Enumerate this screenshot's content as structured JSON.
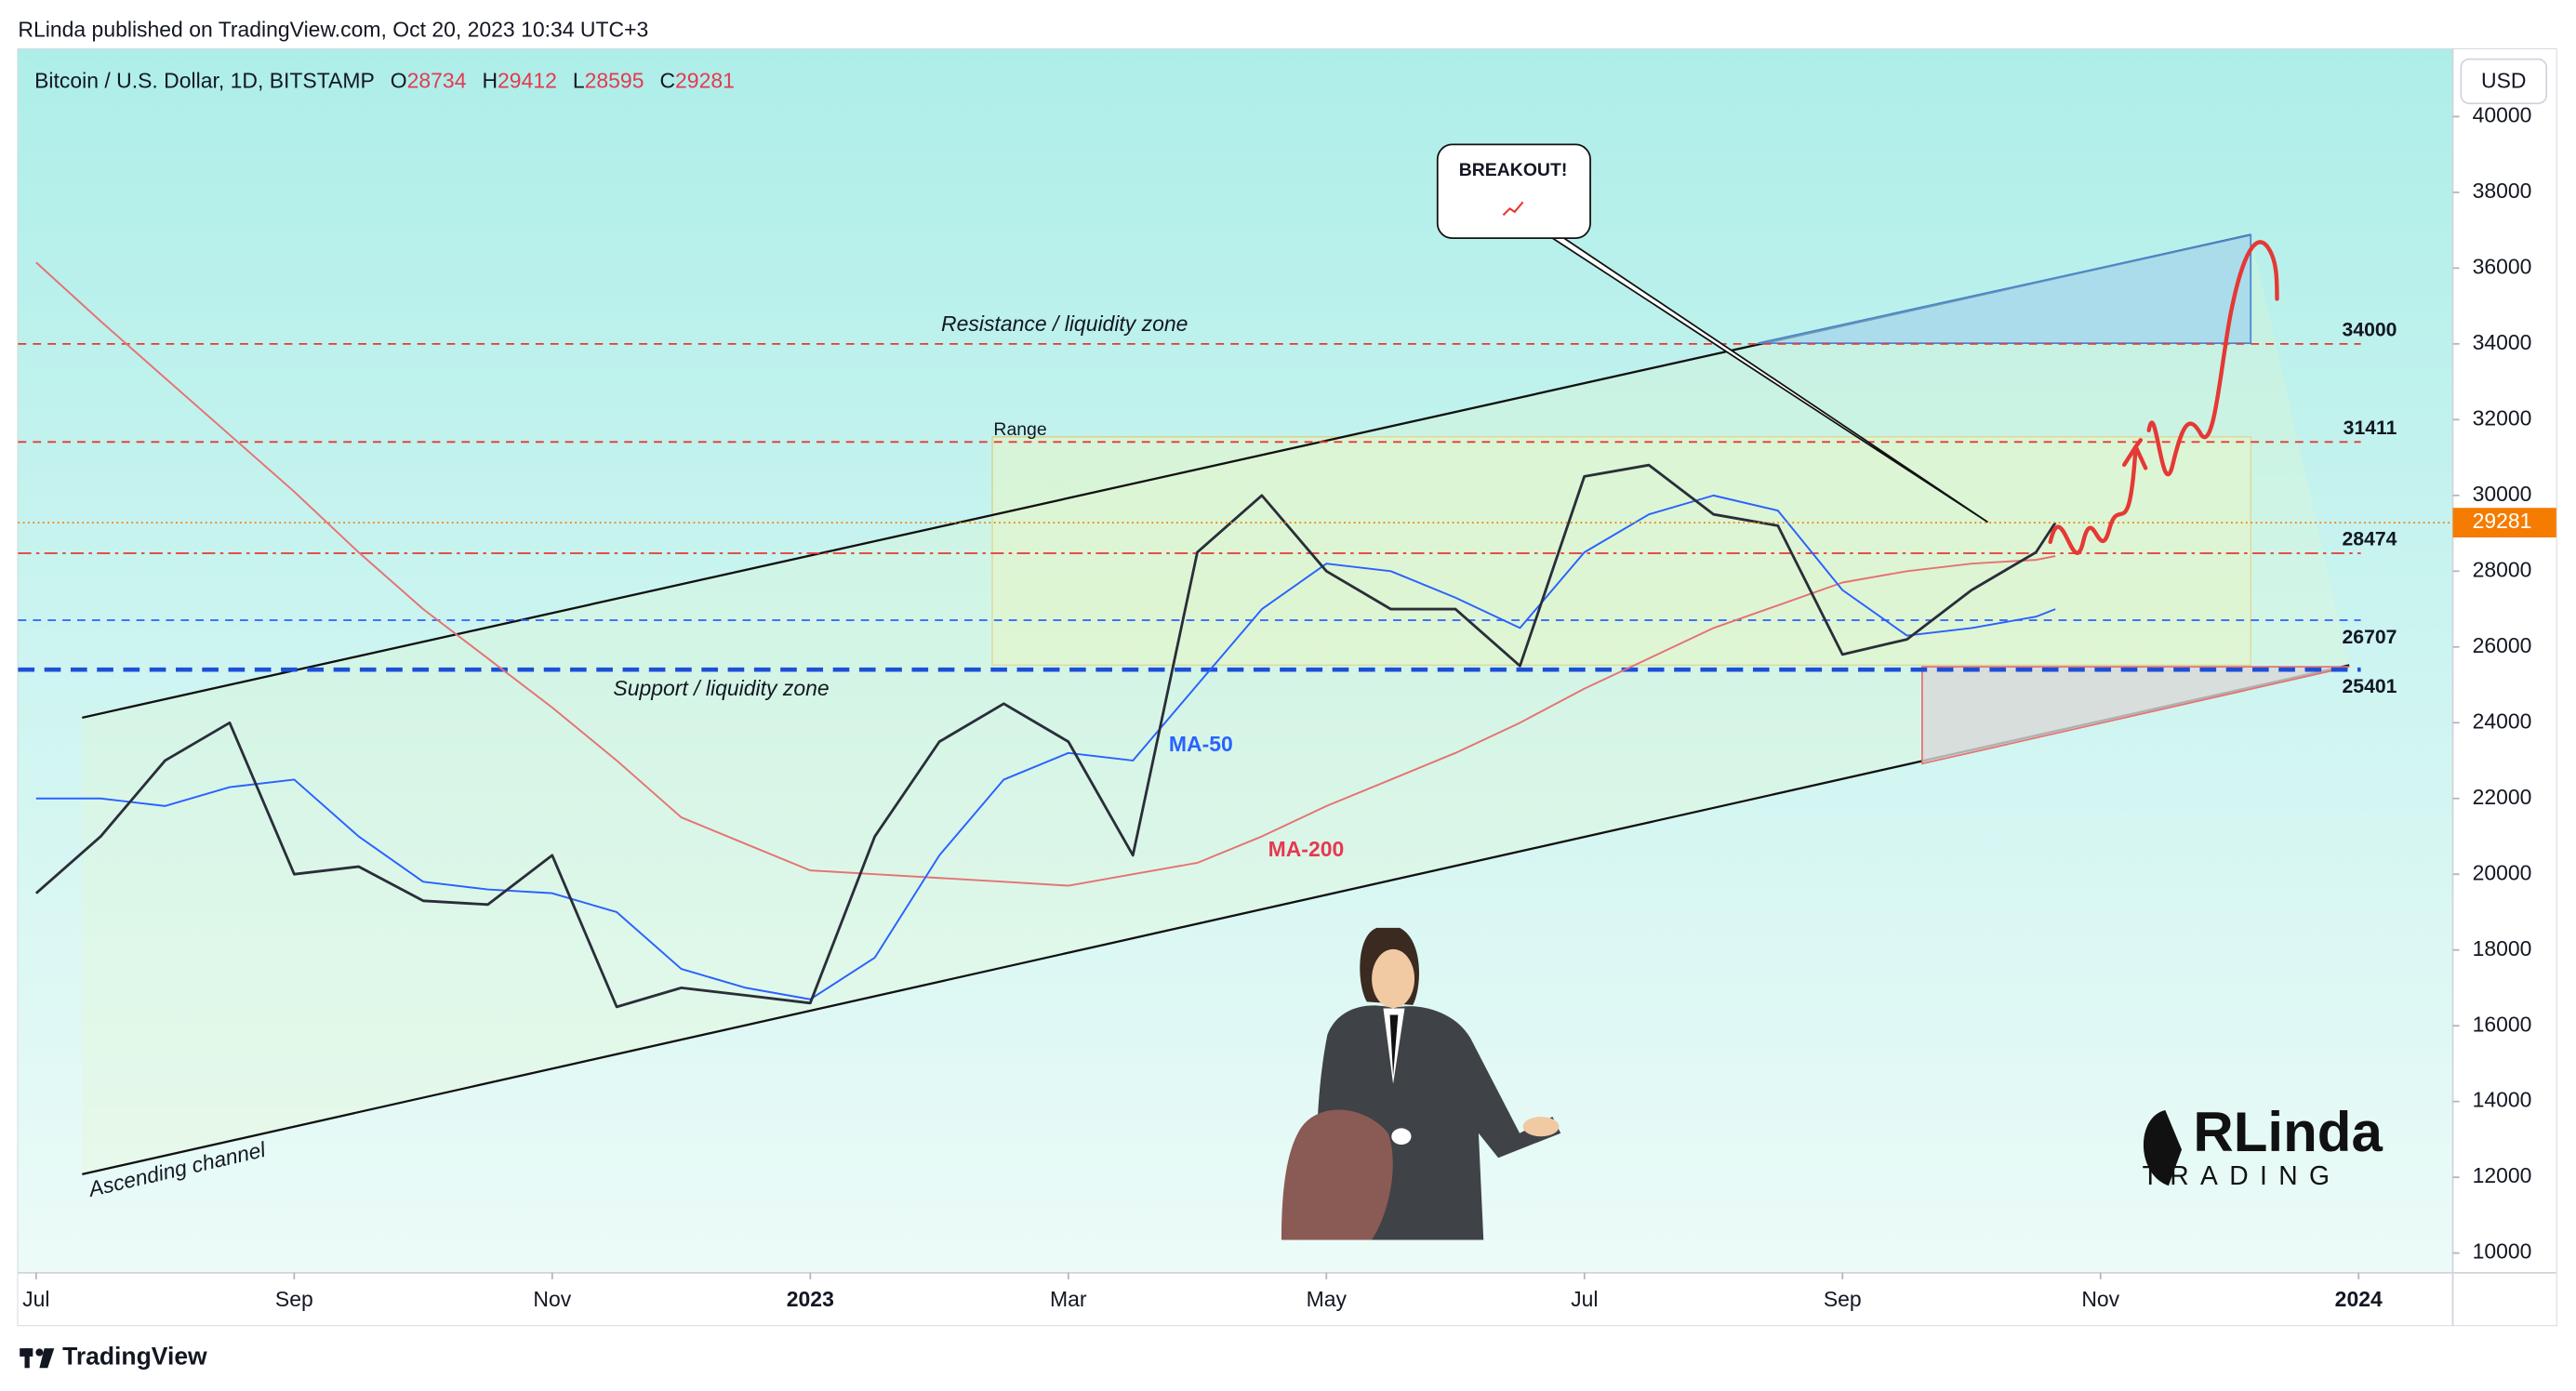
{
  "header": {
    "text": "RLinda published on TradingView.com, Oct 20, 2023 10:34 UTC+3"
  },
  "currency": "USD",
  "footer": {
    "brand": "TradingView"
  },
  "logo": {
    "name": "RLinda",
    "subtitle": "TRADING"
  },
  "chart_data": {
    "type": "line",
    "title": "Bitcoin / U.S. Dollar, 1D, BITSTAMP",
    "ohlc": [
      {
        "label": "O",
        "value": 28734
      },
      {
        "label": "H",
        "value": 29412
      },
      {
        "label": "L",
        "value": 28595
      },
      {
        "label": "C",
        "value": 29281
      }
    ],
    "x": [
      0,
      0.5,
      1,
      1.5,
      2,
      2.5,
      3,
      3.5,
      4,
      4.5,
      5,
      5.5,
      6,
      6.5,
      7,
      7.5,
      8,
      8.5,
      9,
      9.5,
      10,
      10.5,
      11,
      11.5,
      12,
      12.5,
      13,
      13.5,
      14,
      14.5,
      15,
      15.5,
      15.65
    ],
    "series": [
      {
        "color": "#2a2e39",
        "values": [
          19500,
          21000,
          23000,
          24000,
          20000,
          20200,
          19300,
          19200,
          20500,
          16500,
          17000,
          16800,
          16600,
          21000,
          23500,
          24500,
          23500,
          20500,
          28500,
          30000,
          28000,
          27000,
          27000,
          25500,
          30500,
          30800,
          29500,
          29200,
          25800,
          26200,
          27500,
          28500,
          29281
        ]
      },
      {
        "name": "MA-50",
        "color": "#2962ff",
        "values": [
          22000,
          22000,
          21800,
          22300,
          22500,
          21000,
          19800,
          19600,
          19500,
          19000,
          17500,
          17000,
          16700,
          17800,
          20500,
          22500,
          23200,
          23000,
          25000,
          27000,
          28200,
          28000,
          27300,
          26500,
          28500,
          29500,
          30000,
          29600,
          27500,
          26300,
          26500,
          26800,
          27000
        ]
      },
      {
        "name": "MA-200",
        "color": "#e57373",
        "values": [
          36150,
          34600,
          33100,
          31600,
          30100,
          28500,
          27000,
          25700,
          24400,
          23000,
          21500,
          20800,
          20100,
          20000,
          19900,
          19800,
          19700,
          20000,
          20300,
          21000,
          21800,
          22500,
          23200,
          24000,
          24900,
          25700,
          26500,
          27100,
          27700,
          28000,
          28200,
          28300,
          28400
        ]
      }
    ],
    "levels": [
      {
        "value": 34000,
        "color": "#e53935",
        "style": "dashed"
      },
      {
        "value": 31411,
        "color": "#e53935",
        "style": "dashed"
      },
      {
        "value": 28474,
        "color": "#e53935",
        "style": "dashdot"
      },
      {
        "value": 26707,
        "color": "#2962ff",
        "style": "dashed"
      },
      {
        "value": 25401,
        "color": "#1e4fd8",
        "style": "bold"
      }
    ],
    "annotations": [
      "Resistance / liquidity zone",
      "Range",
      "Support / liquidity zone",
      "Ascending channel",
      "BREAKOUT!"
    ],
    "xlim": [
      -0.14,
      18.73
    ],
    "ylim": [
      9480,
      41777
    ],
    "xticks": [
      {
        "value": 0,
        "label": "Jul"
      },
      {
        "value": 2,
        "label": "Sep"
      },
      {
        "value": 4,
        "label": "Nov"
      },
      {
        "value": 6,
        "label": "2023"
      },
      {
        "value": 8,
        "label": "Mar"
      },
      {
        "value": 10,
        "label": "May"
      },
      {
        "value": 12,
        "label": "Jul"
      },
      {
        "value": 14,
        "label": "Sep"
      },
      {
        "value": 16,
        "label": "Nov"
      },
      {
        "value": 18,
        "label": "2024"
      }
    ],
    "yticks": [
      10000,
      12000,
      14000,
      16000,
      18000,
      20000,
      22000,
      24000,
      26000,
      28000,
      30000,
      32000,
      34000,
      36000,
      38000,
      40000
    ],
    "last_color": "#f57c00"
  }
}
